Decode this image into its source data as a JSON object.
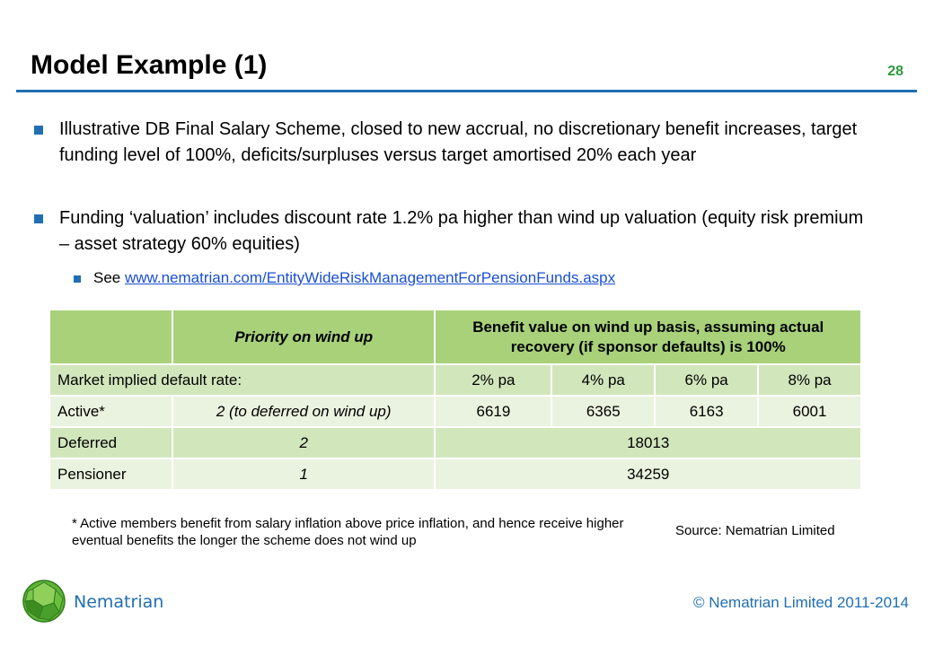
{
  "header": {
    "title": "Model Example (1)",
    "page_number": "28"
  },
  "bullets": [
    {
      "text": "Illustrative DB Final Salary Scheme, closed to new accrual, no discretionary benefit increases, target funding level of 100%, deficits/surpluses versus target amortised 20% each year"
    },
    {
      "text": "Funding ‘valuation’ includes discount rate 1.2% pa higher than wind up valuation (equity risk premium – asset strategy 60% equities)"
    }
  ],
  "sub_bullet": {
    "prefix": "See ",
    "link": "www.nematrian.com/EntityWideRiskManagementForPensionFunds.aspx"
  },
  "table": {
    "header": {
      "col1": "",
      "col2": "Priority on wind up",
      "col3": "Benefit value on wind up basis,  assuming actual recovery (if sponsor defaults) is 100%"
    },
    "default_rate_label": "Market implied  default rate:",
    "rates": [
      "2% pa",
      "4% pa",
      "6% pa",
      "8% pa"
    ],
    "active": {
      "label": "Active*",
      "priority": "2 (to deferred on wind up)",
      "values": [
        "6619",
        "6365",
        "6163",
        "6001"
      ]
    },
    "deferred": {
      "label": "Deferred",
      "priority": "2",
      "value": "18013"
    },
    "pensioner": {
      "label": "Pensioner",
      "priority": "1",
      "value": "34259"
    }
  },
  "footnote": "* Active members benefit from salary inflation above price inflation, and hence receive higher eventual benefits the longer the scheme does not wind up",
  "source": "Source: Nematrian Limited",
  "footer": {
    "brand": "Nematrian",
    "copyright": "© Nematrian Limited 2011-2014"
  },
  "colors": {
    "accent_blue": "#1f6fb2",
    "page_number_green": "#2e9a3c",
    "table_header": "#a8d17a",
    "table_row_dark": "#d2e6bc",
    "table_row_light": "#eaf3df"
  }
}
